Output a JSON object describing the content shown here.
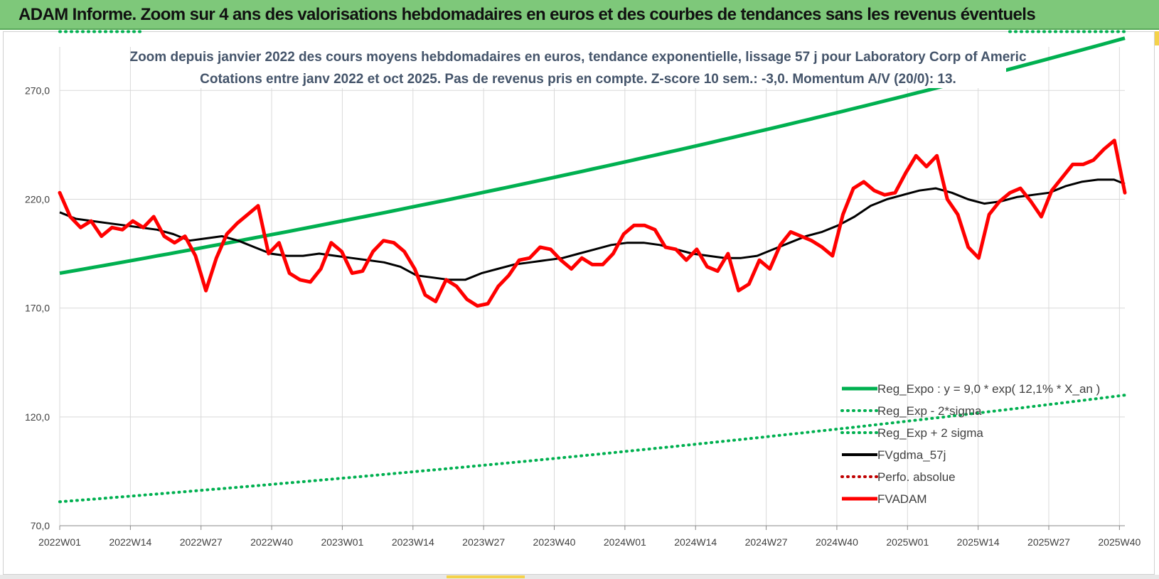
{
  "header": {
    "title": "ADAM Informe. Zoom sur 4 ans des valorisations hebdomadaires en euros et des courbes de tendances sans les revenus éventuels"
  },
  "colors": {
    "banner": "#7ec87a",
    "trend": "#00b050",
    "mma": "#000000",
    "price": "#ff0000",
    "perf": "#c00000",
    "grid": "#d9d9d9",
    "subtitle": "#44546a"
  },
  "chart_data": {
    "type": "line",
    "subtitle_line1": "Zoom depuis janvier 2022 des cours moyens hebdomadaires en euros, tendance exponentielle, lissage 57 j pour Laboratory Corp of Americ",
    "subtitle_line2": "Cotations entre janv 2022 et oct 2025. Pas de revenus pris en compte. Z-score 10 sem.: -3,0. Momentum A/V (20/0): 13.",
    "ylim": [
      70,
      290
    ],
    "yticks": [
      70,
      120,
      170,
      220,
      270
    ],
    "ytick_labels": [
      "70,0",
      "120,0",
      "170,0",
      "220,0",
      "270,0"
    ],
    "x_start_index": 0,
    "x_end_index": 196,
    "xticks": [
      {
        "label": "2022W01",
        "index": 0
      },
      {
        "label": "2022W14",
        "index": 13
      },
      {
        "label": "2022W27",
        "index": 26
      },
      {
        "label": "2022W40",
        "index": 39
      },
      {
        "label": "2023W01",
        "index": 52
      },
      {
        "label": "2023W14",
        "index": 65
      },
      {
        "label": "2023W27",
        "index": 78
      },
      {
        "label": "2023W40",
        "index": 91
      },
      {
        "label": "2024W01",
        "index": 104
      },
      {
        "label": "2024W14",
        "index": 117
      },
      {
        "label": "2024W27",
        "index": 130
      },
      {
        "label": "2024W40",
        "index": 143
      },
      {
        "label": "2025W01",
        "index": 156
      },
      {
        "label": "2025W14",
        "index": 169
      },
      {
        "label": "2025W27",
        "index": 182
      },
      {
        "label": "2025W40",
        "index": 195
      }
    ],
    "legend": [
      {
        "label": "Reg_Expo : y = 9,0 * exp( 12,1% * X_an )",
        "color": "#00b050",
        "style": "solid"
      },
      {
        "label": "Reg_Exp - 2*sigma",
        "color": "#00b050",
        "style": "dotted"
      },
      {
        "label": "Reg_Exp + 2 sigma",
        "color": "#00b050",
        "style": "dotted"
      },
      {
        "label": "FVgdma_57j",
        "color": "#000000",
        "style": "solid"
      },
      {
        "label": "Perfo. absolue",
        "color": "#c00000",
        "style": "dotted"
      },
      {
        "label": "FVADAM",
        "color": "#ff0000",
        "style": "thick"
      }
    ],
    "series": [
      {
        "name": "Reg_Expo",
        "color": "#00b050",
        "style": "solid",
        "start": 186,
        "end": 294
      },
      {
        "name": "Reg_Exp - 2*sigma",
        "color": "#00b050",
        "style": "dotted",
        "start": 81,
        "end": 130
      },
      {
        "name": "Reg_Exp + 2 sigma",
        "color": "#00b050",
        "style": "dotted",
        "start": 297,
        "end": 297
      },
      {
        "name": "FVgdma_57j",
        "color": "#000000",
        "style": "solid",
        "points": [
          [
            0,
            214
          ],
          [
            3,
            211
          ],
          [
            6,
            210
          ],
          [
            9,
            209
          ],
          [
            12,
            208
          ],
          [
            15,
            207
          ],
          [
            18,
            206
          ],
          [
            21,
            204
          ],
          [
            24,
            201
          ],
          [
            27,
            202
          ],
          [
            30,
            203
          ],
          [
            33,
            201
          ],
          [
            36,
            198
          ],
          [
            39,
            195
          ],
          [
            42,
            194
          ],
          [
            45,
            194
          ],
          [
            48,
            195
          ],
          [
            51,
            194
          ],
          [
            54,
            193
          ],
          [
            57,
            192
          ],
          [
            60,
            191
          ],
          [
            63,
            189
          ],
          [
            66,
            185
          ],
          [
            69,
            184
          ],
          [
            72,
            183
          ],
          [
            75,
            183
          ],
          [
            78,
            186
          ],
          [
            81,
            188
          ],
          [
            84,
            190
          ],
          [
            87,
            191
          ],
          [
            90,
            192
          ],
          [
            93,
            193
          ],
          [
            96,
            195
          ],
          [
            99,
            197
          ],
          [
            102,
            199
          ],
          [
            105,
            200
          ],
          [
            108,
            200
          ],
          [
            111,
            199
          ],
          [
            114,
            197
          ],
          [
            117,
            195
          ],
          [
            120,
            194
          ],
          [
            123,
            193
          ],
          [
            126,
            193
          ],
          [
            129,
            194
          ],
          [
            132,
            197
          ],
          [
            135,
            200
          ],
          [
            138,
            203
          ],
          [
            141,
            205
          ],
          [
            144,
            208
          ],
          [
            147,
            212
          ],
          [
            150,
            217
          ],
          [
            153,
            220
          ],
          [
            156,
            222
          ],
          [
            159,
            224
          ],
          [
            162,
            225
          ],
          [
            165,
            223
          ],
          [
            168,
            220
          ],
          [
            171,
            218
          ],
          [
            174,
            219
          ],
          [
            177,
            221
          ],
          [
            180,
            222
          ],
          [
            183,
            223
          ],
          [
            186,
            226
          ],
          [
            189,
            228
          ],
          [
            192,
            229
          ],
          [
            195,
            229
          ],
          [
            197,
            227
          ]
        ]
      },
      {
        "name": "FVADAM",
        "color": "#ff0000",
        "style": "thick",
        "points": [
          [
            0,
            223
          ],
          [
            2,
            212
          ],
          [
            4,
            207
          ],
          [
            6,
            210
          ],
          [
            8,
            203
          ],
          [
            10,
            207
          ],
          [
            12,
            206
          ],
          [
            14,
            210
          ],
          [
            16,
            207
          ],
          [
            18,
            212
          ],
          [
            20,
            203
          ],
          [
            22,
            200
          ],
          [
            24,
            203
          ],
          [
            26,
            194
          ],
          [
            28,
            178
          ],
          [
            30,
            193
          ],
          [
            32,
            204
          ],
          [
            34,
            209
          ],
          [
            36,
            213
          ],
          [
            38,
            217
          ],
          [
            40,
            195
          ],
          [
            42,
            200
          ],
          [
            44,
            186
          ],
          [
            46,
            183
          ],
          [
            48,
            182
          ],
          [
            50,
            188
          ],
          [
            52,
            200
          ],
          [
            54,
            196
          ],
          [
            56,
            186
          ],
          [
            58,
            187
          ],
          [
            60,
            196
          ],
          [
            62,
            201
          ],
          [
            64,
            200
          ],
          [
            66,
            196
          ],
          [
            68,
            188
          ],
          [
            70,
            176
          ],
          [
            72,
            173
          ],
          [
            74,
            183
          ],
          [
            76,
            180
          ],
          [
            78,
            174
          ],
          [
            80,
            171
          ],
          [
            82,
            172
          ],
          [
            84,
            180
          ],
          [
            86,
            185
          ],
          [
            88,
            192
          ],
          [
            90,
            193
          ],
          [
            92,
            198
          ],
          [
            94,
            197
          ],
          [
            96,
            192
          ],
          [
            98,
            188
          ],
          [
            100,
            193
          ],
          [
            102,
            190
          ],
          [
            104,
            190
          ],
          [
            106,
            195
          ],
          [
            108,
            204
          ],
          [
            110,
            208
          ],
          [
            112,
            208
          ],
          [
            114,
            206
          ],
          [
            116,
            198
          ],
          [
            118,
            197
          ],
          [
            120,
            192
          ],
          [
            122,
            197
          ],
          [
            124,
            189
          ],
          [
            126,
            187
          ],
          [
            128,
            195
          ],
          [
            130,
            178
          ],
          [
            132,
            181
          ],
          [
            134,
            192
          ],
          [
            136,
            188
          ],
          [
            138,
            199
          ],
          [
            140,
            205
          ],
          [
            142,
            203
          ],
          [
            144,
            201
          ],
          [
            146,
            198
          ],
          [
            148,
            194
          ],
          [
            150,
            213
          ],
          [
            152,
            225
          ],
          [
            154,
            228
          ],
          [
            156,
            224
          ],
          [
            158,
            222
          ],
          [
            160,
            223
          ],
          [
            162,
            232
          ],
          [
            164,
            240
          ],
          [
            166,
            235
          ],
          [
            168,
            240
          ],
          [
            170,
            220
          ],
          [
            172,
            213
          ],
          [
            174,
            198
          ],
          [
            176,
            193
          ],
          [
            178,
            213
          ],
          [
            180,
            219
          ],
          [
            182,
            223
          ],
          [
            184,
            225
          ],
          [
            186,
            219
          ],
          [
            188,
            212
          ],
          [
            190,
            224
          ],
          [
            192,
            230
          ],
          [
            194,
            236
          ],
          [
            196,
            236
          ],
          [
            198,
            238
          ],
          [
            200,
            243
          ],
          [
            202,
            247
          ],
          [
            204,
            223
          ]
        ]
      }
    ]
  }
}
